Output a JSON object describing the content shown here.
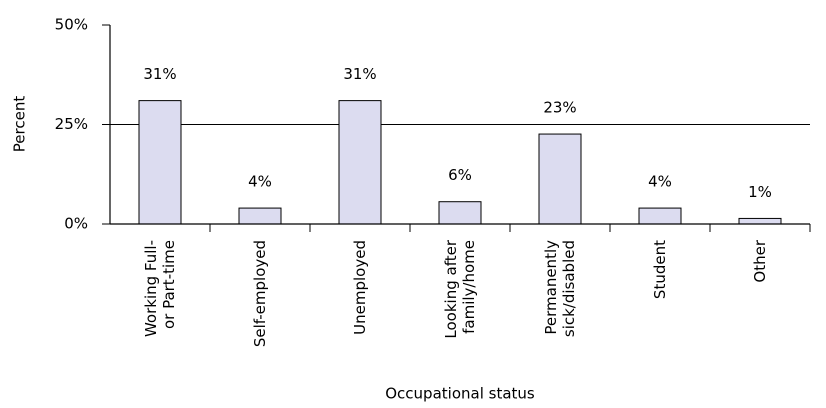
{
  "chart_data": {
    "type": "bar",
    "x_label": "Occupational status",
    "y_label": "Percent",
    "categories": [
      "Working Full-\nor Part-time",
      "Self-employed",
      "Unemployed",
      "Looking after\nfamily/home",
      "Permanently\nsick/disabled",
      "Student",
      "Other"
    ],
    "values": [
      31,
      4,
      31,
      5.6,
      22.6,
      4,
      1.4
    ],
    "value_labels": [
      "31%",
      "4%",
      "31%",
      "6%",
      "23%",
      "4%",
      "1%"
    ],
    "color": "#dcdcf0",
    "ylim": [
      0,
      50
    ],
    "yticks": [
      {
        "value": 0,
        "label": "0%"
      },
      {
        "value": 25,
        "label": "25%"
      },
      {
        "value": 50,
        "label": "50%"
      }
    ],
    "grid": true
  }
}
